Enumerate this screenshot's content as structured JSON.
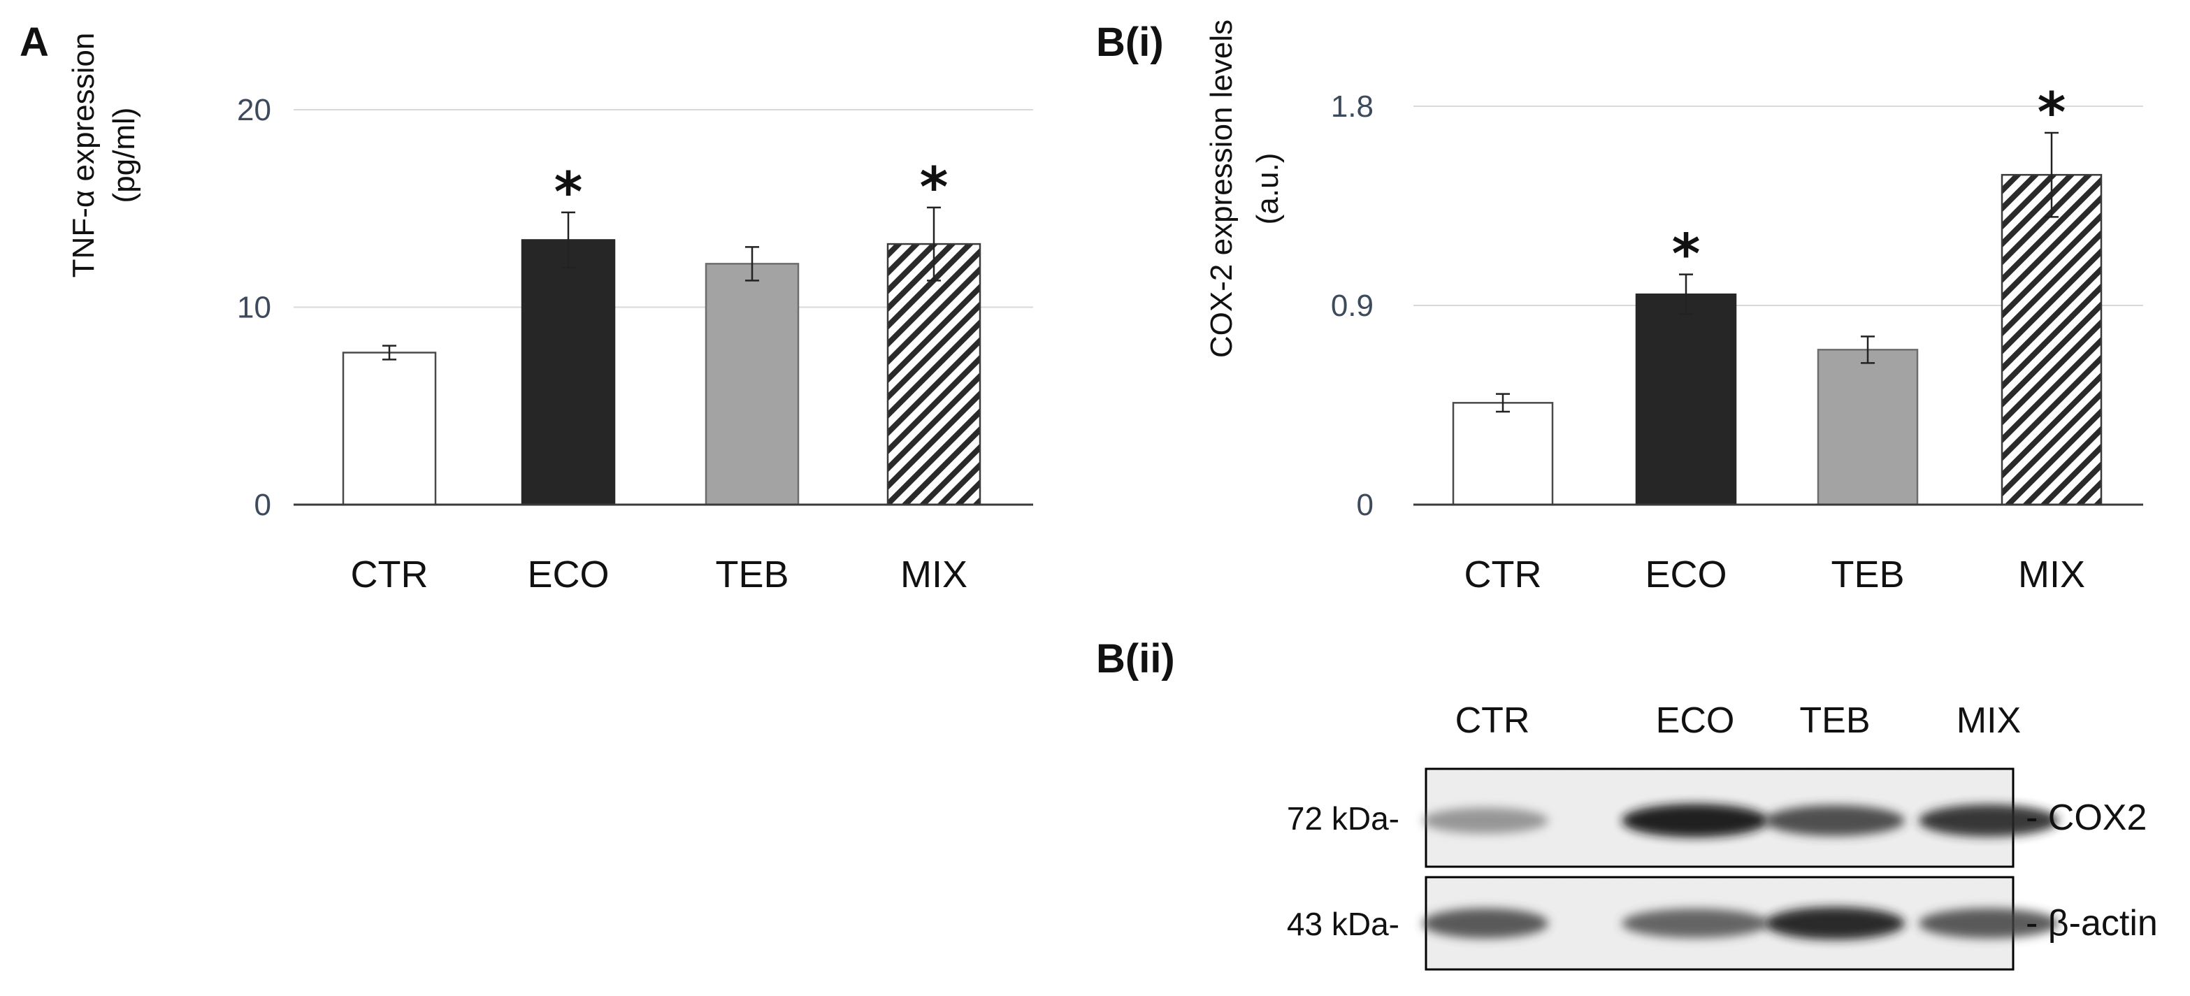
{
  "chart_data": [
    {
      "panel": "A",
      "type": "bar",
      "ylabel_line1": "TNF-α expression",
      "ylabel_line2": "(pg/ml)",
      "categories": [
        "CTR",
        "ECO",
        "TEB",
        "MIX"
      ],
      "values": [
        7.7,
        13.4,
        12.2,
        13.2
      ],
      "errors": [
        0.35,
        1.4,
        0.85,
        1.85
      ],
      "significant": [
        false,
        true,
        false,
        true
      ],
      "yticks": [
        "0",
        "10",
        "20"
      ],
      "ylim": [
        0,
        20
      ],
      "grid": true
    },
    {
      "panel": "B(i)",
      "type": "bar",
      "ylabel_line1": "COX-2 expression levels",
      "ylabel_line2": "(a.u.)",
      "categories": [
        "CTR",
        "ECO",
        "TEB",
        "MIX"
      ],
      "values": [
        0.46,
        0.95,
        0.7,
        1.49
      ],
      "errors": [
        0.04,
        0.09,
        0.06,
        0.19
      ],
      "significant": [
        false,
        true,
        false,
        true
      ],
      "yticks": [
        "0",
        "0.9",
        "1.8"
      ],
      "ylim": [
        0,
        1.8
      ],
      "grid": true
    }
  ],
  "star_symbol": "*",
  "bar_styles": {
    "CTR": {
      "fill": "#ffffff",
      "stroke": "#4a4a4a"
    },
    "ECO": {
      "fill": "#262626",
      "stroke": "#262626"
    },
    "TEB": {
      "fill": "#a3a3a3",
      "stroke": "#6d6d6d"
    },
    "MIX": {
      "fill": "hatch",
      "stroke": "#3a3a3a"
    }
  },
  "blot": {
    "panel": "B(ii)",
    "lanes": [
      "CTR",
      "ECO",
      "TEB",
      "MIX"
    ],
    "rows": [
      {
        "marker": "72 kDa-",
        "label": "- COX2",
        "intensity": [
          0.45,
          1.0,
          0.8,
          0.9
        ]
      },
      {
        "marker": "43 kDa-",
        "label": "- β-actin",
        "intensity": [
          0.75,
          0.7,
          0.95,
          0.75
        ]
      }
    ]
  }
}
